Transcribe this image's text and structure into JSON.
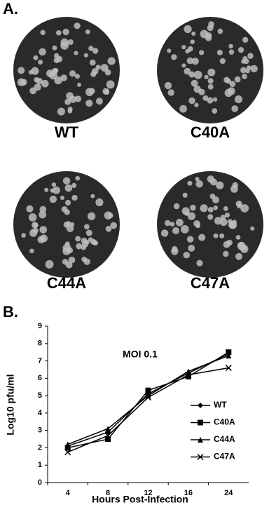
{
  "panels": {
    "a_label": "A.",
    "b_label": "B.",
    "plates": [
      "WT",
      "C40A",
      "C44A",
      "C47A"
    ]
  },
  "chart_data": {
    "type": "line",
    "title": "MOI 0.1",
    "x_label": "Hours Post-Infection",
    "y_label": "Log10 pfu/ml",
    "categories": [
      "4",
      "8",
      "12",
      "16",
      "24"
    ],
    "series": [
      {
        "name": "WT",
        "color": "#000000",
        "marker": "diamond",
        "values": [
          2.1,
          2.9,
          5.1,
          6.3,
          7.4
        ]
      },
      {
        "name": "C40A",
        "color": "#000000",
        "marker": "square",
        "values": [
          2.0,
          2.5,
          5.3,
          6.1,
          7.5
        ]
      },
      {
        "name": "C44A",
        "color": "#000000",
        "marker": "triangle",
        "values": [
          2.2,
          3.1,
          5.0,
          6.4,
          7.3
        ]
      },
      {
        "name": "C47A",
        "color": "#000000",
        "marker": "x",
        "values": [
          1.75,
          2.7,
          4.9,
          6.2,
          6.6
        ]
      }
    ],
    "ylim": [
      0,
      9
    ],
    "yticks": [
      0,
      1,
      2,
      3,
      4,
      5,
      6,
      7,
      8,
      9
    ],
    "grid": false,
    "legend": "right"
  }
}
